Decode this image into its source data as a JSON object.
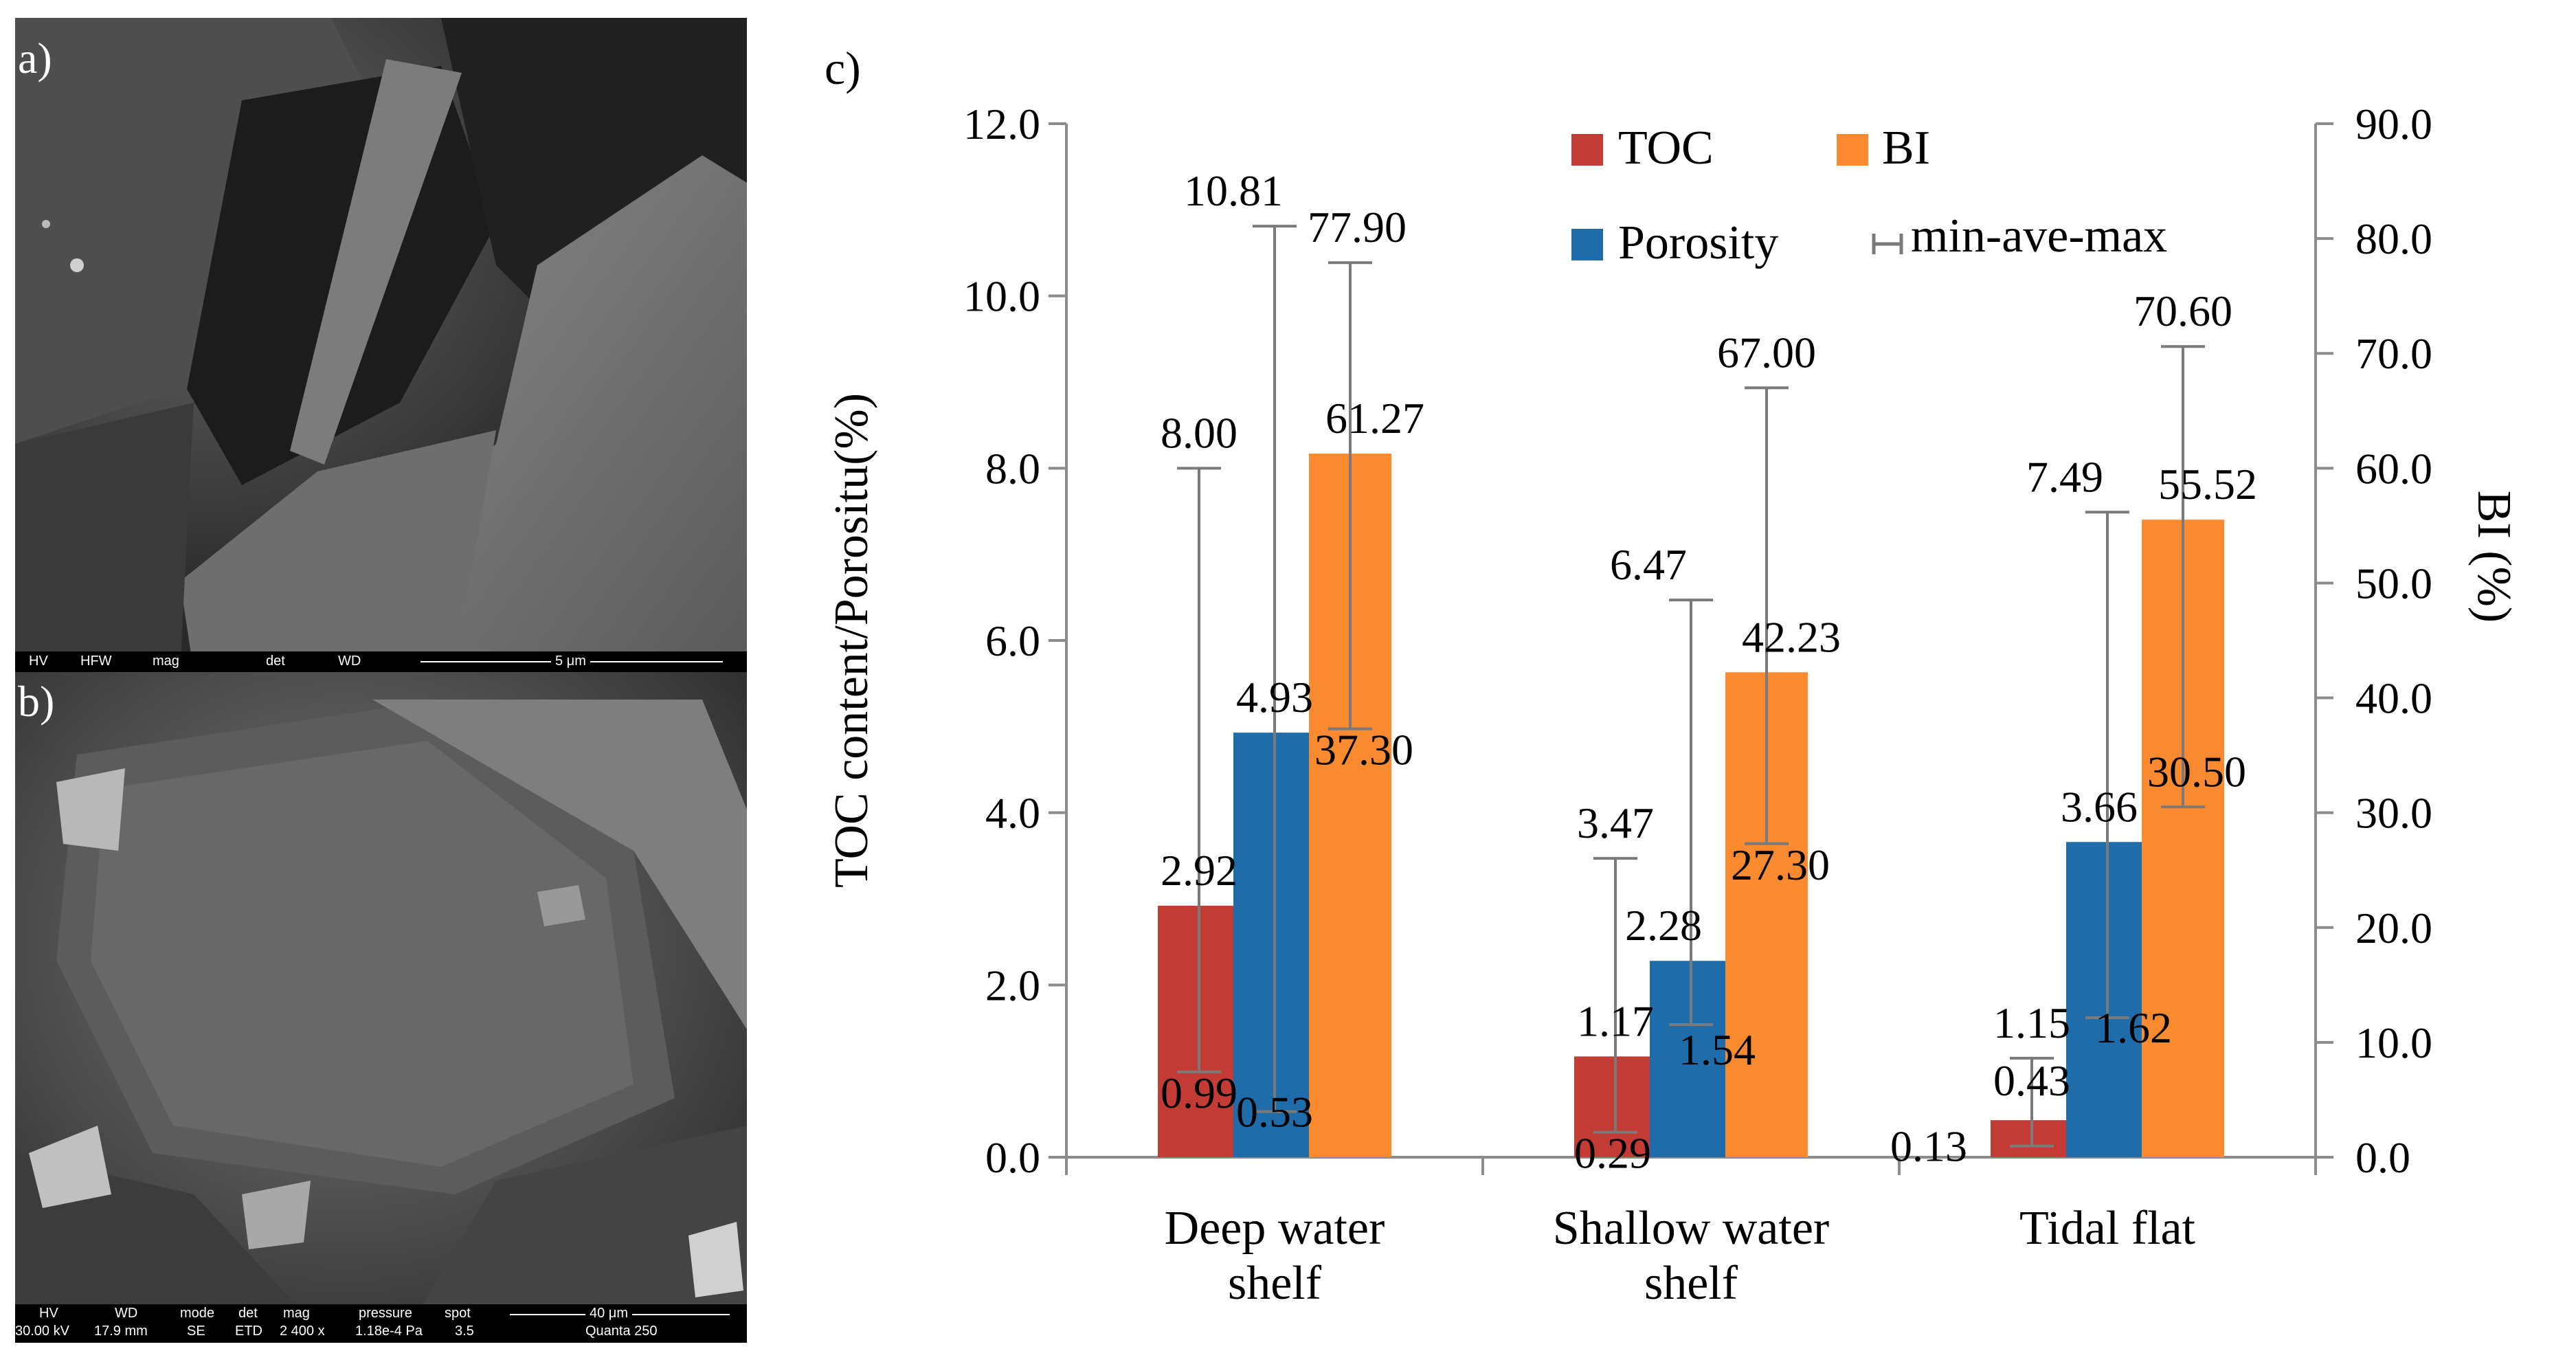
{
  "panels": {
    "a": {
      "label": "a)",
      "databar": {
        "hv": "HV",
        "hfw": "HFW",
        "mag": "mag",
        "det": "det",
        "wd": "WD",
        "scale": "5 μm"
      }
    },
    "b": {
      "label": "b)",
      "databar": {
        "headers": [
          "HV",
          "WD",
          "mode",
          "det",
          "mag",
          "pressure",
          "spot"
        ],
        "values": [
          "30.00 kV",
          "17.9 mm",
          "SE",
          "ETD",
          "2 400 x",
          "1.18e-4 Pa",
          "3.5"
        ],
        "scale": "40 μm",
        "instrument": "Quanta 250"
      }
    },
    "c": {
      "label": "c)"
    }
  },
  "colors": {
    "toc": "#C33B35",
    "porosity": "#1F6CAA",
    "bi": "#F98A2F",
    "axis": "#8C8C8C",
    "whisker": "#7A7A7A"
  },
  "chart_data": {
    "type": "bar",
    "categories": [
      [
        "Deep water",
        "shelf"
      ],
      [
        "Shallow water",
        "shelf"
      ],
      [
        "Tidal  flat"
      ]
    ],
    "ylabel": "TOC  content/Porositu(%)",
    "y2label": "BI (%)",
    "ylim": [
      0,
      12
    ],
    "y2lim": [
      0,
      90
    ],
    "yticks": [
      "0.0",
      "2.0",
      "4.0",
      "6.0",
      "8.0",
      "10.0",
      "12.0"
    ],
    "y2ticks": [
      "0.0",
      "10.0",
      "20.0",
      "30.0",
      "40.0",
      "50.0",
      "60.0",
      "70.0",
      "80.0",
      "90.0"
    ],
    "legend": {
      "position": "top-right",
      "toc": "TOC",
      "bi": "BI",
      "porosity": "Porosity",
      "range": "min-ave-max"
    },
    "series": [
      {
        "name": "TOC",
        "axis": "left",
        "values": [
          2.92,
          1.17,
          0.43
        ],
        "min": [
          0.99,
          0.29,
          0.13
        ],
        "max": [
          8.0,
          3.47,
          1.15
        ],
        "labels": {
          "ave": [
            "2.92",
            "1.17",
            "0.43"
          ],
          "min": [
            "0.99",
            "0.29",
            "0.13"
          ],
          "max": [
            "8.00",
            "3.47",
            "1.15"
          ]
        }
      },
      {
        "name": "Porosity",
        "axis": "left",
        "values": [
          4.93,
          2.28,
          3.66
        ],
        "min": [
          0.53,
          1.54,
          1.62
        ],
        "max": [
          10.81,
          6.47,
          7.49
        ],
        "labels": {
          "ave": [
            "4.93",
            "2.28",
            "3.66"
          ],
          "min": [
            "0.53",
            "1.54",
            "1.62"
          ],
          "max": [
            "10.81",
            "6.47",
            "7.49"
          ]
        }
      },
      {
        "name": "BI",
        "axis": "right",
        "values": [
          61.27,
          42.23,
          55.52
        ],
        "min": [
          37.3,
          27.3,
          30.5
        ],
        "max": [
          77.9,
          67.0,
          70.6
        ],
        "labels": {
          "ave": [
            "61.27",
            "42.23",
            "55.52"
          ],
          "min": [
            "37.30",
            "27.30",
            "30.50"
          ],
          "max": [
            "77.90",
            "67.00",
            "70.60"
          ]
        }
      }
    ]
  }
}
